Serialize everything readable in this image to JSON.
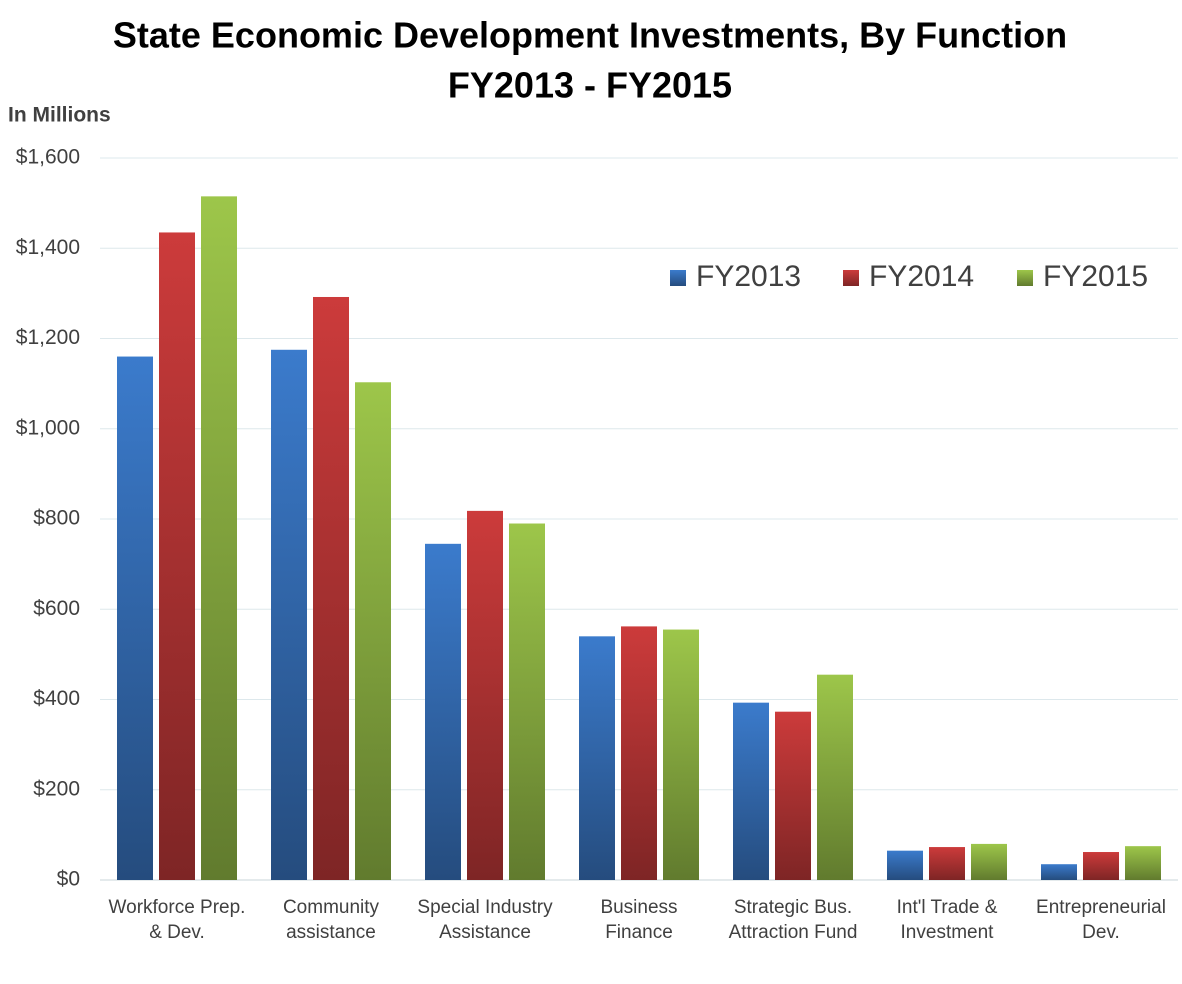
{
  "chart_data": {
    "type": "bar",
    "title": "State Economic Development Investments, By Function",
    "subtitle": "FY2013 - FY2015",
    "y_axis_label": "In Millions",
    "categories": [
      "Workforce Prep. & Dev.",
      "Community assistance",
      "Special Industry Assistance",
      "Business Finance",
      "Strategic Bus. Attraction Fund",
      "Int'l Trade & Investment",
      "Entrepreneurial Dev."
    ],
    "series": [
      {
        "name": "FY2013",
        "color": "#3b7bcc",
        "values": [
          1160,
          1175,
          745,
          540,
          393,
          65,
          35
        ]
      },
      {
        "name": "FY2014",
        "color": "#cc3b3b",
        "values": [
          1435,
          1292,
          818,
          562,
          373,
          73,
          62
        ]
      },
      {
        "name": "FY2015",
        "color": "#9dc64a",
        "values": [
          1515,
          1103,
          790,
          555,
          455,
          80,
          75
        ]
      }
    ],
    "ylim": [
      0,
      1600
    ],
    "yticks": [
      {
        "value": 0,
        "label": "$0"
      },
      {
        "value": 200,
        "label": "$200"
      },
      {
        "value": 400,
        "label": "$400"
      },
      {
        "value": 600,
        "label": "$600"
      },
      {
        "value": 800,
        "label": "$800"
      },
      {
        "value": 1000,
        "label": "$1,000"
      },
      {
        "value": 1200,
        "label": "$1,200"
      },
      {
        "value": 1400,
        "label": "$1,400"
      },
      {
        "value": 1600,
        "label": "$1,600"
      }
    ],
    "grid": true,
    "legend": "top-right"
  }
}
